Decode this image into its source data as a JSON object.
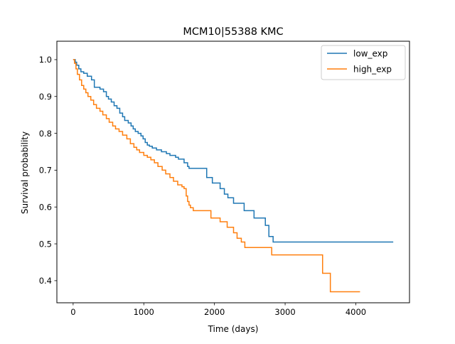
{
  "chart_data": {
    "type": "line",
    "title": "MCM10|55388 KMC",
    "xlabel": "Time (days)",
    "ylabel": "Survival probability",
    "xlim": [
      -230,
      4760
    ],
    "ylim": [
      0.34,
      1.05
    ],
    "x_ticks": [
      0,
      1000,
      2000,
      3000,
      4000
    ],
    "y_ticks": [
      0.4,
      0.5,
      0.6,
      0.7,
      0.8,
      0.9,
      1.0
    ],
    "x_tick_labels": [
      "0",
      "1000",
      "2000",
      "3000",
      "4000"
    ],
    "y_tick_labels": [
      "0.4",
      "0.5",
      "0.6",
      "0.7",
      "0.8",
      "0.9",
      "1.0"
    ],
    "grid": false,
    "legend_position": "top-right",
    "step": "post",
    "series": [
      {
        "name": "low_exp",
        "color": "#1f77b4",
        "x": [
          0,
          30,
          50,
          80,
          110,
          150,
          200,
          260,
          300,
          380,
          430,
          470,
          500,
          540,
          580,
          620,
          660,
          700,
          730,
          780,
          820,
          850,
          880,
          920,
          960,
          990,
          1020,
          1050,
          1080,
          1120,
          1180,
          1250,
          1320,
          1370,
          1420,
          1450,
          1490,
          1570,
          1620,
          1640,
          1700,
          1890,
          1930,
          1970,
          2080,
          2140,
          2190,
          2270,
          2420,
          2560,
          2720,
          2770,
          2830,
          4530
        ],
        "y": [
          1.0,
          0.993,
          0.985,
          0.975,
          0.967,
          0.963,
          0.955,
          0.945,
          0.925,
          0.92,
          0.913,
          0.9,
          0.893,
          0.885,
          0.875,
          0.868,
          0.855,
          0.845,
          0.835,
          0.828,
          0.82,
          0.812,
          0.805,
          0.8,
          0.793,
          0.785,
          0.775,
          0.768,
          0.765,
          0.76,
          0.755,
          0.75,
          0.745,
          0.74,
          0.74,
          0.735,
          0.73,
          0.72,
          0.71,
          0.705,
          0.705,
          0.68,
          0.68,
          0.665,
          0.65,
          0.635,
          0.625,
          0.61,
          0.59,
          0.57,
          0.55,
          0.52,
          0.505,
          0.505
        ]
      },
      {
        "name": "high_exp",
        "color": "#ff7f0e",
        "x": [
          0,
          20,
          40,
          60,
          90,
          120,
          150,
          180,
          210,
          250,
          290,
          330,
          380,
          420,
          470,
          510,
          560,
          600,
          650,
          700,
          760,
          810,
          860,
          900,
          940,
          1000,
          1050,
          1100,
          1150,
          1200,
          1260,
          1310,
          1370,
          1420,
          1480,
          1540,
          1570,
          1600,
          1620,
          1640,
          1660,
          1700,
          1950,
          2080,
          2180,
          2270,
          2320,
          2380,
          2430,
          2810,
          3530,
          3580,
          3640,
          4060
        ],
        "y": [
          1.0,
          0.99,
          0.975,
          0.96,
          0.945,
          0.93,
          0.92,
          0.91,
          0.9,
          0.89,
          0.878,
          0.868,
          0.86,
          0.85,
          0.84,
          0.83,
          0.82,
          0.812,
          0.805,
          0.795,
          0.785,
          0.772,
          0.762,
          0.755,
          0.748,
          0.74,
          0.735,
          0.728,
          0.72,
          0.71,
          0.7,
          0.69,
          0.68,
          0.67,
          0.66,
          0.655,
          0.65,
          0.63,
          0.615,
          0.605,
          0.598,
          0.59,
          0.57,
          0.56,
          0.545,
          0.53,
          0.515,
          0.505,
          0.49,
          0.47,
          0.42,
          0.42,
          0.37,
          0.37
        ]
      }
    ]
  }
}
